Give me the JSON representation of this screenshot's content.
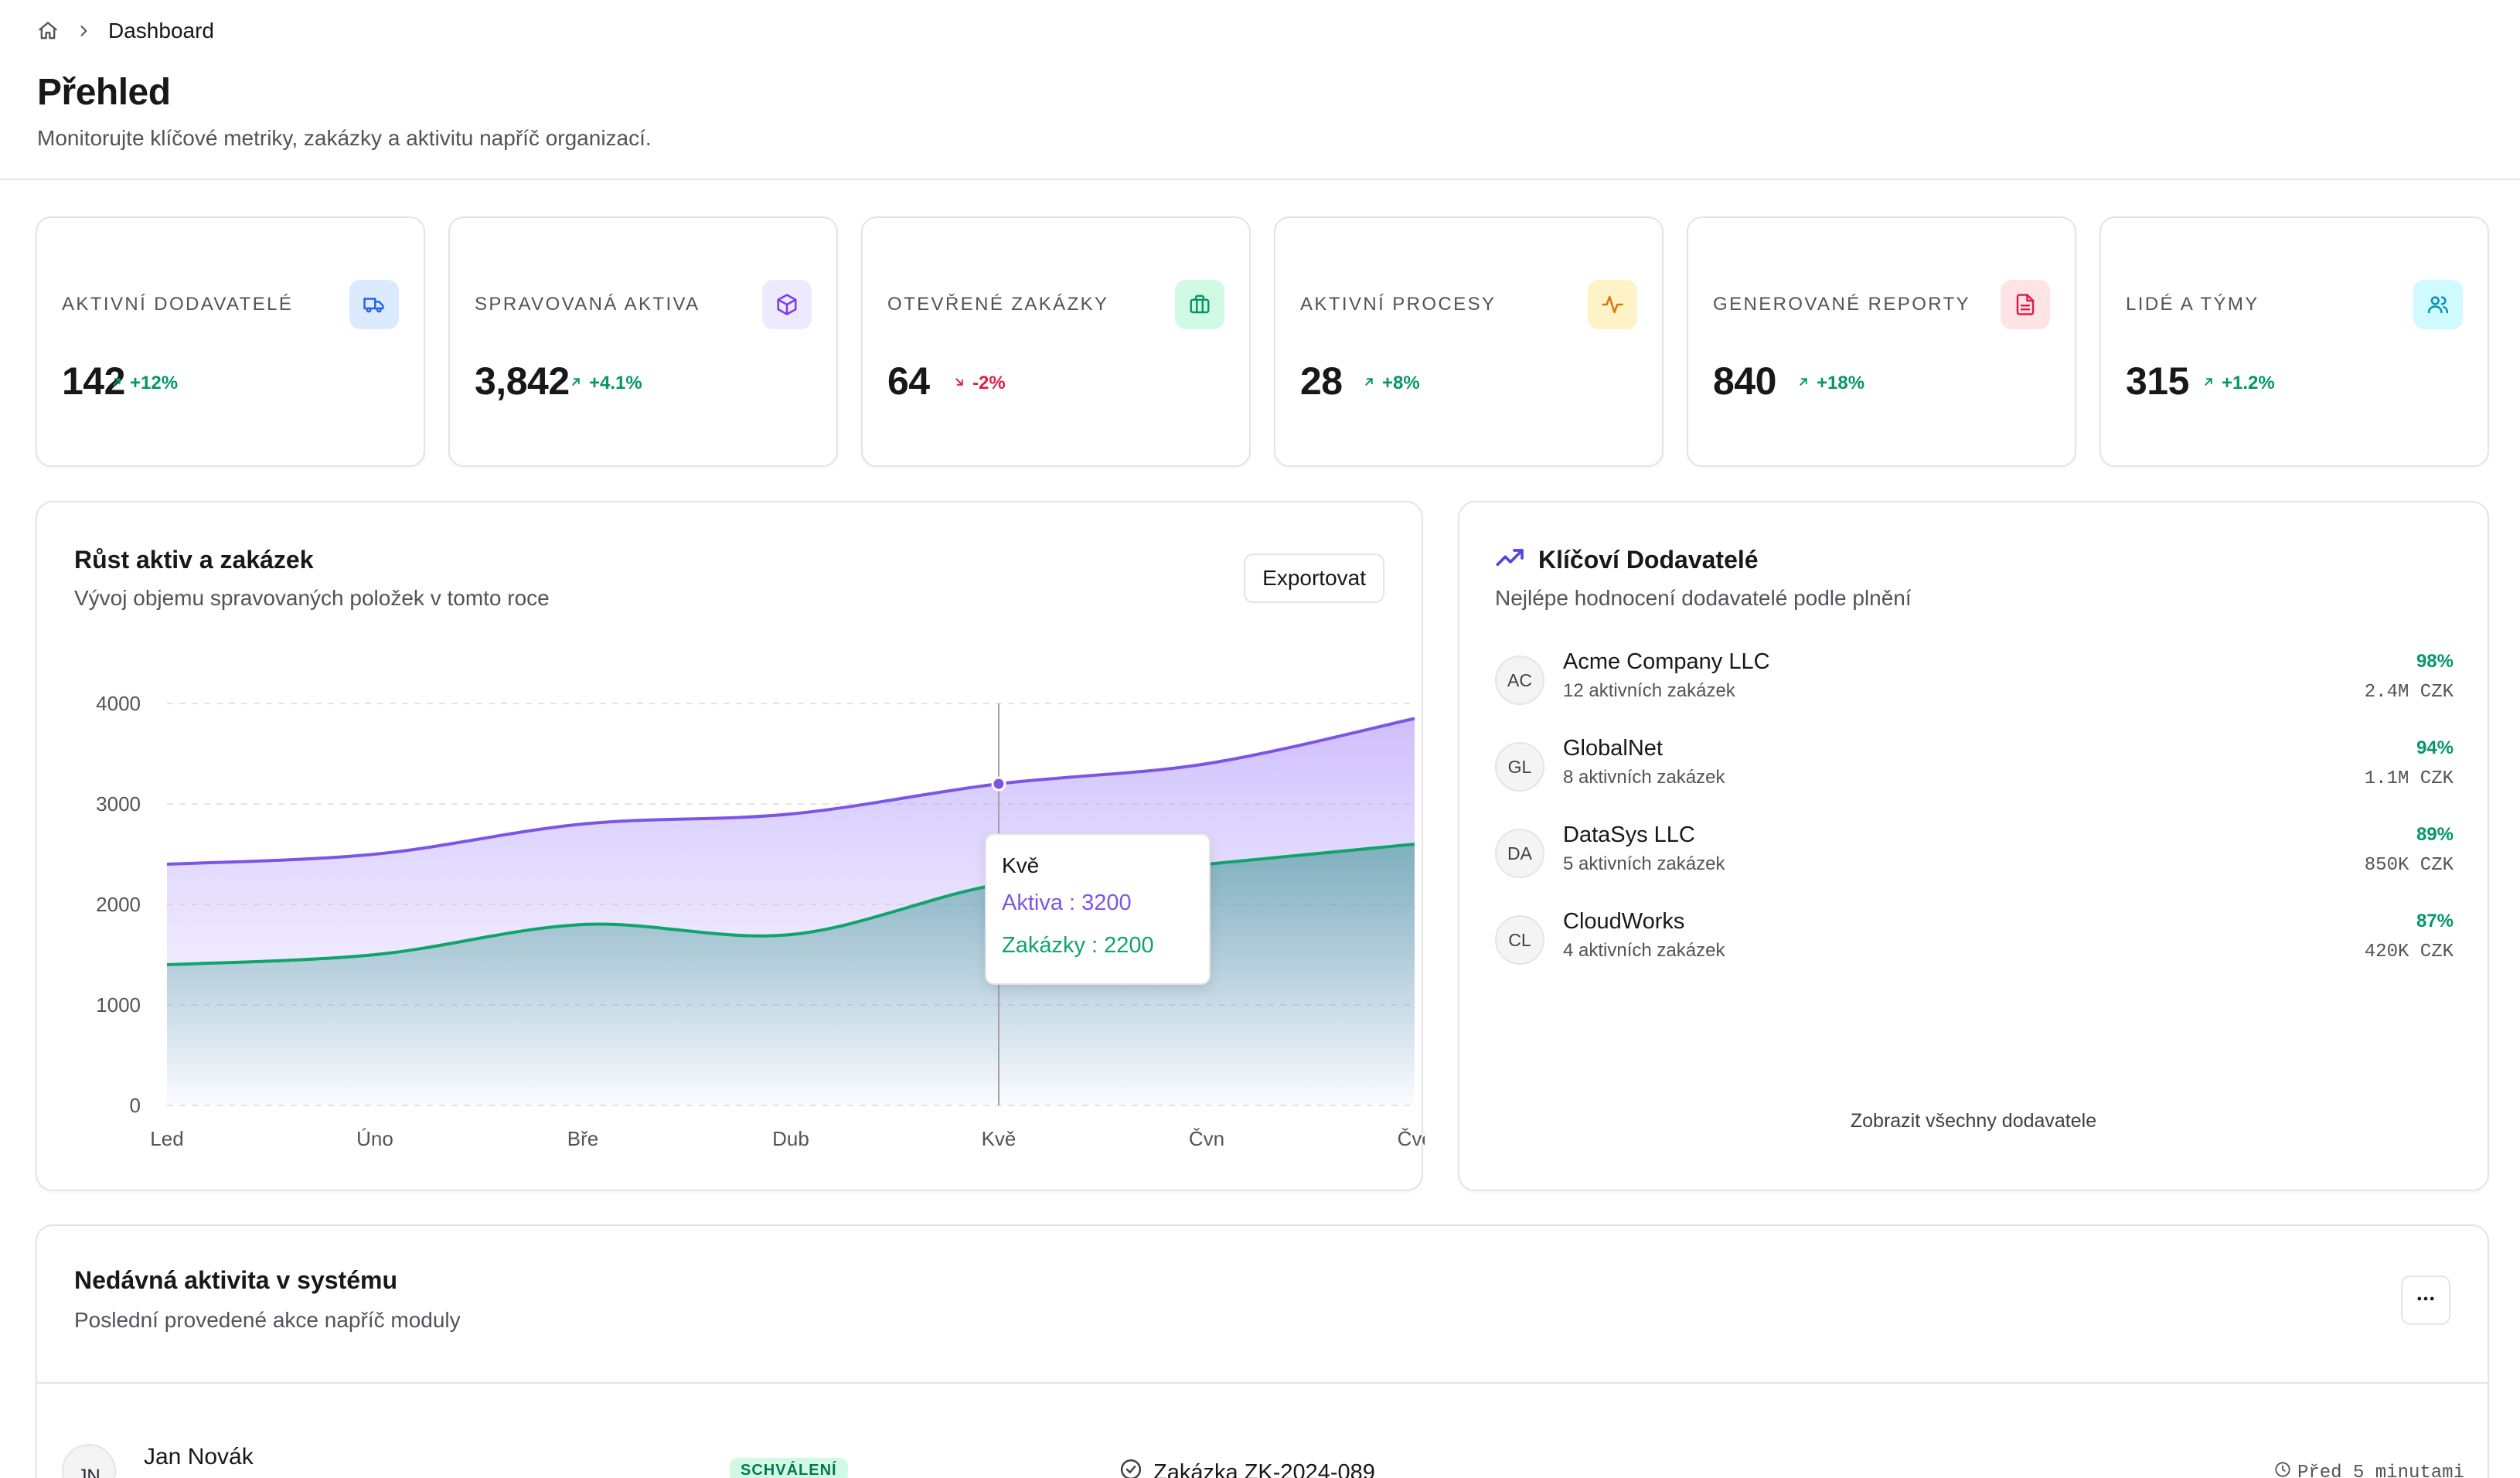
{
  "breadcrumb": {
    "current": "Dashboard"
  },
  "header": {
    "title": "Přehled",
    "subtitle": "Monitorujte klíčové metriky, zakázky a aktivitu napříč organizací."
  },
  "stats": [
    {
      "label": "Aktivní dodavatelé",
      "value": "142",
      "delta": "+12%",
      "trend": "up",
      "icon": "truck-icon",
      "icon_bg": "#dbeafe",
      "icon_color": "#2563eb"
    },
    {
      "label": "Spravovaná aktiva",
      "value": "3,842",
      "delta": "+4.1%",
      "trend": "up",
      "icon": "box-icon",
      "icon_bg": "#ede9fe",
      "icon_color": "#7c3aed"
    },
    {
      "label": "Otevřené zakázky",
      "value": "64",
      "delta": "-2%",
      "trend": "down",
      "icon": "briefcase-icon",
      "icon_bg": "#d1fae5",
      "icon_color": "#059669"
    },
    {
      "label": "Aktivní procesy",
      "value": "28",
      "delta": "+8%",
      "trend": "up",
      "icon": "activity-icon",
      "icon_bg": "#fef3c7",
      "icon_color": "#d97706"
    },
    {
      "label": "Generované reporty",
      "value": "840",
      "delta": "+18%",
      "trend": "up",
      "icon": "file-text-icon",
      "icon_bg": "#ffe4e6",
      "icon_color": "#e11d48"
    },
    {
      "label": "Lidé a týmy",
      "value": "315",
      "delta": "+1.2%",
      "trend": "up",
      "icon": "users-icon",
      "icon_bg": "#cffafe",
      "icon_color": "#0891b2"
    }
  ],
  "growth": {
    "title": "Růst aktiv a zakázek",
    "subtitle": "Vývoj objemu spravovaných položek v tomto roce",
    "export_label": "Exportovat",
    "tooltip": {
      "title": "Kvě",
      "line1": "Aktiva : 3200",
      "line2": "Zakázky : 2200"
    }
  },
  "chart_data": {
    "type": "area",
    "categories": [
      "Led",
      "Úno",
      "Bře",
      "Dub",
      "Kvě",
      "Čvn",
      "Čvc"
    ],
    "series": [
      {
        "name": "Aktiva",
        "values": [
          2400,
          2500,
          2800,
          2900,
          3200,
          3400,
          3850
        ],
        "color": "#7c55e5"
      },
      {
        "name": "Zakázky",
        "values": [
          1400,
          1500,
          1800,
          1700,
          2200,
          2400,
          2600
        ],
        "color": "#10a36b"
      }
    ],
    "yticks": [
      0,
      1000,
      2000,
      3000,
      4000
    ],
    "ylim": [
      0,
      4000
    ],
    "grid": true,
    "highlight_index": 4
  },
  "suppliers": {
    "title": "Klíčoví Dodavatelé",
    "subtitle": "Nejlépe hodnocení dodavatelé podle plnění",
    "items": [
      {
        "initials": "AC",
        "name": "Acme Company LLC",
        "orders": "12 aktivních zakázek",
        "score": "98%",
        "amount": "2.4M CZK"
      },
      {
        "initials": "GL",
        "name": "GlobalNet",
        "orders": "8 aktivních zakázek",
        "score": "94%",
        "amount": "1.1M CZK"
      },
      {
        "initials": "DA",
        "name": "DataSys LLC",
        "orders": "5 aktivních zakázek",
        "score": "89%",
        "amount": "850K CZK"
      },
      {
        "initials": "CL",
        "name": "CloudWorks",
        "orders": "4 aktivních zakázek",
        "score": "87%",
        "amount": "420K CZK"
      }
    ],
    "view_all": "Zobrazit všechny dodavatele"
  },
  "activity": {
    "title": "Nedávná aktivita v systému",
    "subtitle": "Poslední provedené akce napříč moduly",
    "rows": [
      {
        "initials": "JN",
        "name": "Jan Novák",
        "badge": "SCHVÁLENÍ",
        "reference": "Zakázka ZK-2024-089",
        "time": "Před 5 minutami"
      }
    ]
  }
}
